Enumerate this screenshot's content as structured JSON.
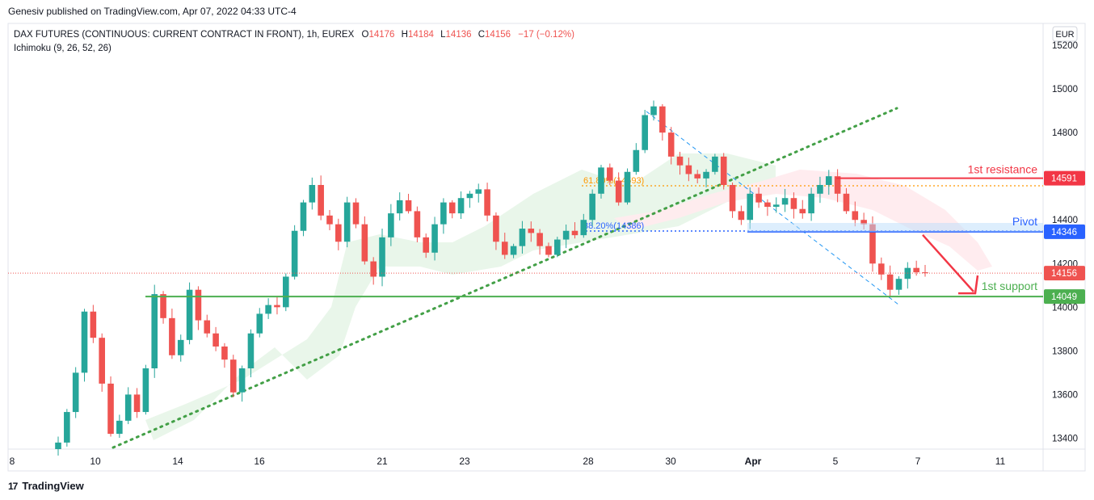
{
  "header": {
    "published_by": "Genesiv published on TradingView.com, Apr 07, 2022 04:33 UTC-4"
  },
  "footer": {
    "brand": "TradingView",
    "logo_glyph": "17"
  },
  "legend": {
    "symbol": "DAX FUTURES (CONTINUOUS: CURRENT CONTRACT IN FRONT), 1h, EUREX",
    "o_label": "O",
    "o_value": "14176",
    "h_label": "H",
    "h_value": "14184",
    "l_label": "L",
    "l_value": "14136",
    "c_label": "C",
    "c_value": "14156",
    "change": "−17 (−0.12%)",
    "indicator": "Ichimoku (9, 26, 52, 26)"
  },
  "currency": "EUR",
  "colors": {
    "up": "#26a69a",
    "down": "#ef5350",
    "resistance": "#f23645",
    "pivot": "#2962ff",
    "support": "#4caf50",
    "trend": "#43a047",
    "fib": "#ff9800",
    "cloud_bull": "#e8f5e9",
    "cloud_bear": "#ffebee"
  },
  "annotations": {
    "resistance_label": "1st resistance",
    "pivot_label": "Pivot",
    "support_label": "1st support",
    "fib_618": "61.80%(14593)",
    "fib_382": "38.20%(14386)"
  },
  "chart_data": {
    "type": "candlestick",
    "x_tick_labels": [
      "8",
      "10",
      "14",
      "16",
      "21",
      "23",
      "28",
      "30",
      "Apr",
      "5",
      "7",
      "11"
    ],
    "y_ticks": [
      13400,
      13600,
      13800,
      14000,
      14200,
      14400,
      14600,
      14800,
      15000,
      15200
    ],
    "ylim": [
      13350,
      15300
    ],
    "levels": [
      {
        "name": "1st resistance",
        "value": 14591
      },
      {
        "name": "Pivot",
        "value": 14346
      },
      {
        "name": "1st support",
        "value": 14049
      }
    ],
    "last_price": 14156,
    "price_path": [
      13380,
      13520,
      13700,
      13980,
      13860,
      13650,
      13420,
      13480,
      13600,
      13520,
      13720,
      14060,
      13950,
      13780,
      13850,
      14080,
      13940,
      13880,
      13820,
      13760,
      13610,
      13720,
      13880,
      13970,
      14010,
      14000,
      14140,
      14350,
      14480,
      14560,
      14420,
      14380,
      14300,
      14480,
      14380,
      14210,
      14140,
      14320,
      14430,
      14490,
      14440,
      14320,
      14250,
      14380,
      14480,
      14430,
      14500,
      14520,
      14540,
      14420,
      14300,
      14240,
      14280,
      14360,
      14340,
      14280,
      14240,
      14310,
      14350,
      14330,
      14400,
      14520,
      14640,
      14580,
      14480,
      14620,
      14720,
      14880,
      14920,
      14800,
      14690,
      14650,
      14610,
      14590,
      14620,
      14690,
      14560,
      14440,
      14400,
      14520,
      14480,
      14460,
      14470,
      14500,
      14450,
      14430,
      14520,
      14560,
      14600,
      14520,
      14440,
      14400,
      14380,
      14200,
      14150,
      14080,
      14130,
      14180,
      14160,
      14156
    ]
  }
}
